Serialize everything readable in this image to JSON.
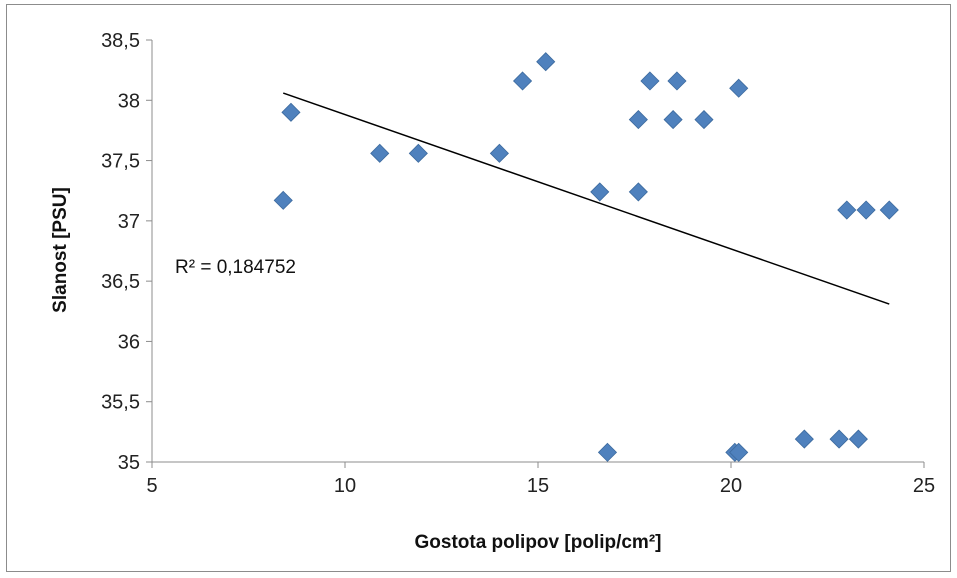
{
  "chart_data": {
    "type": "scatter",
    "title": "",
    "xlabel": "Gostota polipov [polip/cm²]",
    "ylabel": "Slanost [PSU]",
    "xlim": [
      5,
      25
    ],
    "ylim": [
      35,
      38.5
    ],
    "xticks": [
      "5",
      "10",
      "15",
      "20",
      "25"
    ],
    "yticks": [
      "35",
      "35,5",
      "36",
      "36,5",
      "37",
      "37,5",
      "38",
      "38,5"
    ],
    "grid": false,
    "legend": "none",
    "series": [
      {
        "marker": "diamond",
        "color": "#4f81bd",
        "points": [
          [
            8.4,
            37.17
          ],
          [
            8.6,
            37.9
          ],
          [
            10.9,
            37.56
          ],
          [
            11.9,
            37.56
          ],
          [
            14.0,
            37.56
          ],
          [
            14.6,
            38.16
          ],
          [
            15.2,
            38.32
          ],
          [
            16.6,
            37.24
          ],
          [
            17.6,
            37.24
          ],
          [
            17.6,
            37.84
          ],
          [
            17.9,
            38.16
          ],
          [
            18.5,
            37.84
          ],
          [
            18.6,
            38.16
          ],
          [
            19.3,
            37.84
          ],
          [
            20.2,
            38.1
          ],
          [
            16.8,
            35.08
          ],
          [
            20.1,
            35.08
          ],
          [
            20.2,
            35.08
          ],
          [
            21.9,
            35.19
          ],
          [
            22.8,
            35.19
          ],
          [
            23.3,
            35.19
          ],
          [
            23.0,
            37.09
          ],
          [
            23.5,
            37.09
          ],
          [
            24.1,
            37.09
          ]
        ]
      }
    ],
    "trendline": {
      "type": "linear",
      "color": "#000000",
      "x": [
        8.4,
        24.1
      ],
      "y": [
        38.06,
        36.31
      ]
    },
    "annotation": "R² = 0,184752"
  }
}
